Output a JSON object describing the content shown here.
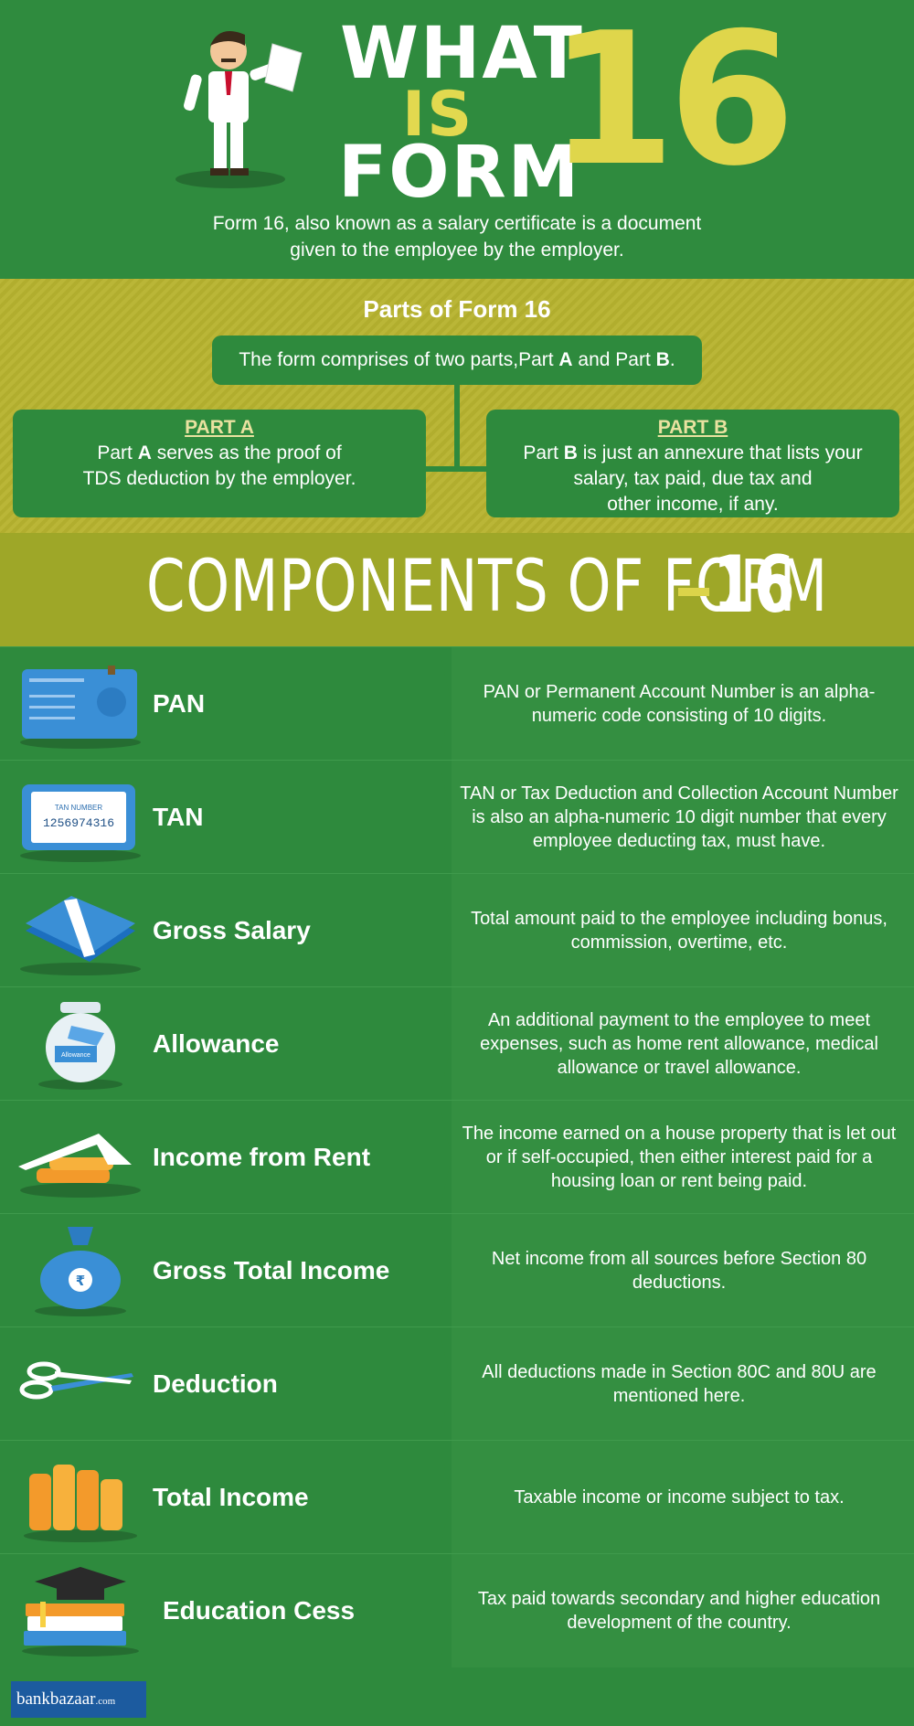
{
  "header": {
    "title_what": "WHAT",
    "title_is": "IS",
    "title_form": "FORM",
    "title_number": "16",
    "intro_line1": "Form 16, also known as a salary certificate is a document",
    "intro_line2": "given to the employee by the employer."
  },
  "parts": {
    "title": "Parts of Form 16",
    "summary_pre": "The form comprises of two parts,Part ",
    "summary_a": "A",
    "summary_mid": " and Part ",
    "summary_b": "B",
    "summary_end": ".",
    "part_a": {
      "heading": "PART A",
      "line1_pre": "Part ",
      "line1_bold": "A",
      "line1_post": " serves as the proof of",
      "line2": "TDS deduction by the employer."
    },
    "part_b": {
      "heading": "PART B",
      "line1_pre": "Part ",
      "line1_bold": "B",
      "line1_post": " is just an annexure that lists your",
      "line2": "salary, tax paid, due tax and",
      "line3": "other income, if any."
    }
  },
  "components": {
    "heading": "COMPONENTS OF FORM",
    "heading_number": "16",
    "items": [
      {
        "icon": "pan-card-icon",
        "label": "PAN",
        "description": "PAN or Permanent Account Number is an alpha-numeric code consisting of 10 digits."
      },
      {
        "icon": "tan-tablet-icon",
        "label": "TAN",
        "icon_text_title": "TAN NUMBER",
        "icon_text_value": "1256974316",
        "description": "TAN or Tax Deduction and Collection Account Number is also  an alpha-numeric 10 digit number that every employee deducting tax, must have."
      },
      {
        "icon": "cash-bundle-icon",
        "label": "Gross Salary",
        "description": "Total amount paid to the employee including bonus, commission, overtime, etc."
      },
      {
        "icon": "jar-icon",
        "label": "Allowance",
        "icon_text": "Allowance",
        "description": "An additional payment to the employee to meet expenses, such as home rent allowance, medical allowance or travel allowance."
      },
      {
        "icon": "house-coins-icon",
        "label": "Income from Rent",
        "description": "The income earned on a house property that is let out or if self-occupied, then either interest paid for a housing loan or rent being paid."
      },
      {
        "icon": "money-bag-icon",
        "label": "Gross Total Income",
        "icon_text": "₹",
        "description": "Net income from all sources before Section 80 deductions."
      },
      {
        "icon": "scissors-icon",
        "label": "Deduction",
        "description": "All deductions made in Section 80C and 80U are mentioned here."
      },
      {
        "icon": "coin-stacks-icon",
        "label": "Total Income",
        "description": "Taxable income or income subject to tax."
      },
      {
        "icon": "books-cap-icon",
        "label": "Education Cess",
        "description": "Tax paid towards secondary and higher education development of the country."
      }
    ]
  },
  "footer": {
    "brand_main": "bankbazaar",
    "brand_suffix": ".com"
  },
  "colors": {
    "green": "#2e8a3d",
    "olive": "#b7b32f",
    "yellow": "#dfd64b",
    "brand_blue": "#1c5b9f"
  }
}
